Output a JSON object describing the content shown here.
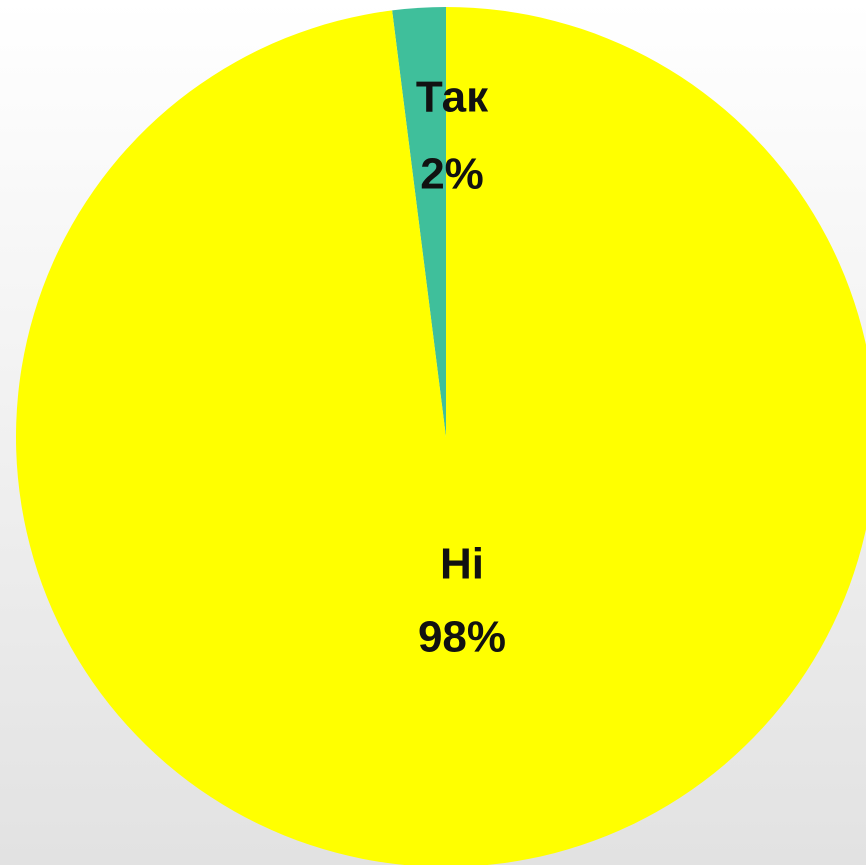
{
  "chart_data": {
    "type": "pie",
    "categories": [
      "Так",
      "Ні"
    ],
    "values": [
      2,
      98
    ],
    "value_labels": [
      "2%",
      "98%"
    ],
    "colors": [
      "#3fbf9b",
      "#ffff00"
    ]
  }
}
